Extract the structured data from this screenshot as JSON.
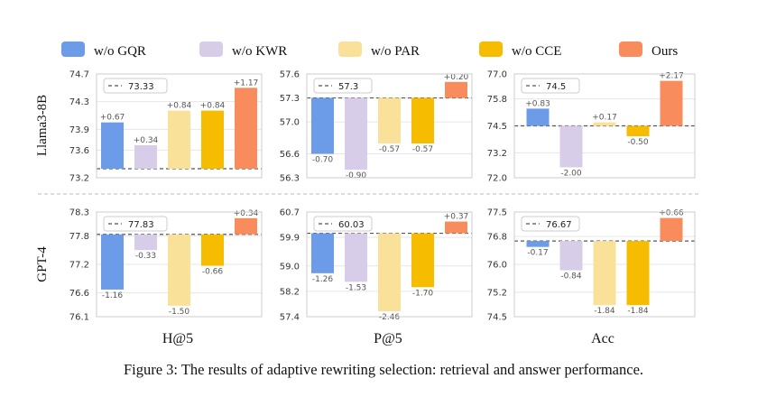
{
  "legend": [
    {
      "name": "w/o GQR",
      "color": "#6c9be8"
    },
    {
      "name": "w/o KWR",
      "color": "#d8cde8"
    },
    {
      "name": "w/o PAR",
      "color": "#fae19a"
    },
    {
      "name": "w/o CCE",
      "color": "#f6bc00"
    },
    {
      "name": "Ours",
      "color": "#f88c5d"
    }
  ],
  "row_labels": [
    "Llama3-8B",
    "GPT-4"
  ],
  "col_labels": [
    "H@5",
    "P@5",
    "Acc"
  ],
  "caption": "Figure 3: The results of adaptive rewriting selection: retrieval and answer performance.",
  "chart_data": [
    {
      "type": "bar",
      "row": "Llama3-8B",
      "metric": "H@5",
      "baseline": 73.33,
      "baseline_label": "73.33",
      "categories": [
        "w/o GQR",
        "w/o KWR",
        "w/o PAR",
        "w/o CCE",
        "Ours"
      ],
      "deltas": [
        0.67,
        0.34,
        0.84,
        0.84,
        1.17
      ],
      "delta_labels": [
        "+0.67",
        "+0.34",
        "+0.84",
        "+0.84",
        "+1.17"
      ],
      "ylim": [
        73.2,
        74.7
      ],
      "yticks": [
        "74.7",
        "74.3",
        "73.9",
        "73.6",
        "73.2"
      ]
    },
    {
      "type": "bar",
      "row": "Llama3-8B",
      "metric": "P@5",
      "baseline": 57.3,
      "baseline_label": "57.3",
      "categories": [
        "w/o GQR",
        "w/o KWR",
        "w/o PAR",
        "w/o CCE",
        "Ours"
      ],
      "deltas": [
        -0.7,
        -0.9,
        -0.57,
        -0.57,
        0.2
      ],
      "delta_labels": [
        "-0.70",
        "-0.90",
        "-0.57",
        "-0.57",
        "+0.20"
      ],
      "ylim": [
        56.3,
        57.6
      ],
      "yticks": [
        "57.6",
        "57.3",
        "57.0",
        "56.6",
        "56.3"
      ]
    },
    {
      "type": "bar",
      "row": "Llama3-8B",
      "metric": "Acc",
      "baseline": 74.5,
      "baseline_label": "74.5",
      "categories": [
        "w/o GQR",
        "w/o KWR",
        "w/o PAR",
        "w/o CCE",
        "Ours"
      ],
      "deltas": [
        0.83,
        -2.0,
        0.17,
        -0.5,
        2.17
      ],
      "delta_labels": [
        "+0.83",
        "-2.00",
        "+0.17",
        "-0.50",
        "+2.17"
      ],
      "ylim": [
        72.0,
        77.0
      ],
      "yticks": [
        "77.0",
        "75.8",
        "74.5",
        "73.2",
        "72.0"
      ]
    },
    {
      "type": "bar",
      "row": "GPT-4",
      "metric": "H@5",
      "baseline": 77.83,
      "baseline_label": "77.83",
      "categories": [
        "w/o GQR",
        "w/o KWR",
        "w/o PAR",
        "w/o CCE",
        "Ours"
      ],
      "deltas": [
        -1.16,
        -0.33,
        -1.5,
        -0.66,
        0.34
      ],
      "delta_labels": [
        "-1.16",
        "-0.33",
        "-1.50",
        "-0.66",
        "+0.34"
      ],
      "ylim": [
        76.1,
        78.3
      ],
      "yticks": [
        "78.3",
        "77.8",
        "77.2",
        "76.6",
        "76.1"
      ]
    },
    {
      "type": "bar",
      "row": "GPT-4",
      "metric": "P@5",
      "baseline": 60.03,
      "baseline_label": "60.03",
      "categories": [
        "w/o GQR",
        "w/o KWR",
        "w/o PAR",
        "w/o CCE",
        "Ours"
      ],
      "deltas": [
        -1.26,
        -1.53,
        -2.46,
        -1.7,
        0.37
      ],
      "delta_labels": [
        "-1.26",
        "-1.53",
        "-2.46",
        "-1.70",
        "+0.37"
      ],
      "ylim": [
        57.4,
        60.7
      ],
      "yticks": [
        "60.7",
        "59.9",
        "59.0",
        "58.2",
        "57.4"
      ]
    },
    {
      "type": "bar",
      "row": "GPT-4",
      "metric": "Acc",
      "baseline": 76.67,
      "baseline_label": "76.67",
      "categories": [
        "w/o GQR",
        "w/o KWR",
        "w/o PAR",
        "w/o CCE",
        "Ours"
      ],
      "deltas": [
        -0.17,
        -0.84,
        -1.84,
        -1.84,
        0.66
      ],
      "delta_labels": [
        "-0.17",
        "-0.84",
        "-1.84",
        "-1.84",
        "+0.66"
      ],
      "ylim": [
        74.5,
        77.5
      ],
      "yticks": [
        "77.5",
        "76.8",
        "76.0",
        "75.2",
        "74.5"
      ]
    }
  ]
}
